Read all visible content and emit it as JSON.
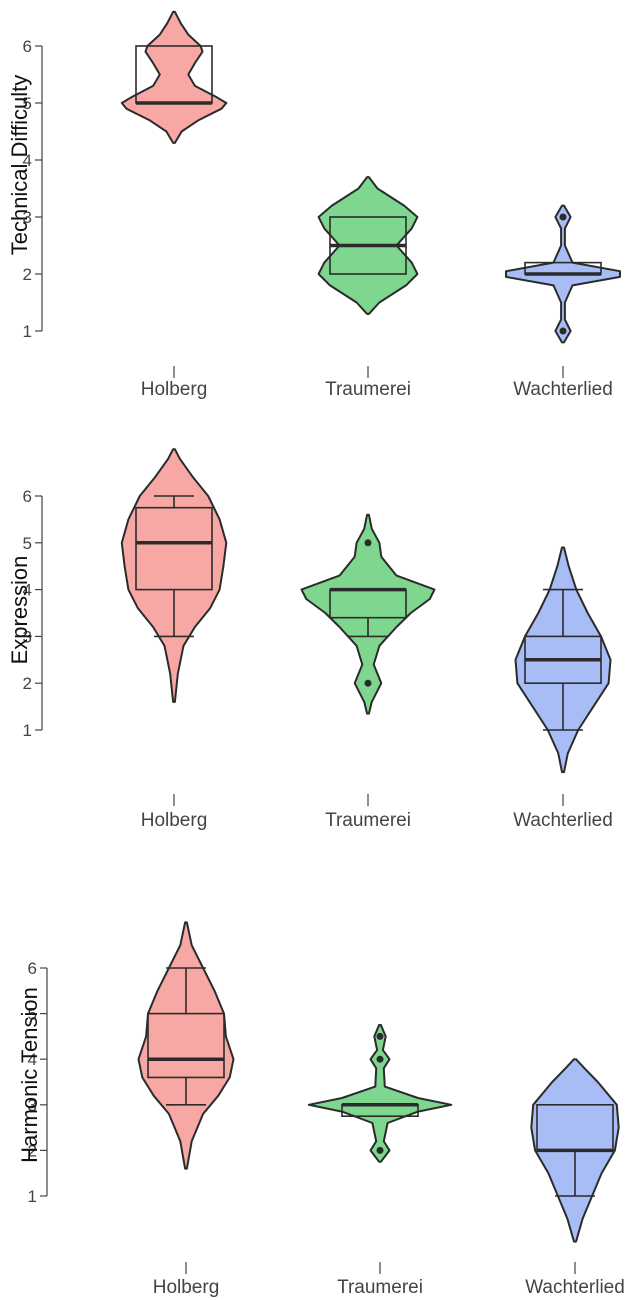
{
  "chart_data": [
    {
      "type": "violin",
      "ylabel": "Technical Difficulty",
      "ylim": [
        1,
        6
      ],
      "yticks": [
        "1",
        "2",
        "3",
        "4",
        "5",
        "6"
      ],
      "categories": [
        "Holberg",
        "Traumerei",
        "Wachterlied"
      ],
      "series": [
        {
          "category": "Holberg",
          "color": "#f8a8a4",
          "box": {
            "whisker_low": 5,
            "q1": 5,
            "median": 5,
            "q3": 6,
            "whisker_high": 6
          },
          "outliers": [],
          "density": [
            [
              4.3,
              0.01
            ],
            [
              4.5,
              0.08
            ],
            [
              4.7,
              0.26
            ],
            [
              4.9,
              0.5
            ],
            [
              5.0,
              0.55
            ],
            [
              5.1,
              0.45
            ],
            [
              5.3,
              0.22
            ],
            [
              5.5,
              0.15
            ],
            [
              5.7,
              0.22
            ],
            [
              5.9,
              0.3
            ],
            [
              6.0,
              0.28
            ],
            [
              6.2,
              0.15
            ],
            [
              6.4,
              0.07
            ],
            [
              6.6,
              0.01
            ]
          ]
        },
        {
          "category": "Traumerei",
          "color": "#7fd68f",
          "box": {
            "whisker_low": 2,
            "q1": 2,
            "median": 2.5,
            "q3": 3,
            "whisker_high": 3
          },
          "outliers": [],
          "density": [
            [
              1.3,
              0.01
            ],
            [
              1.5,
              0.12
            ],
            [
              1.8,
              0.4
            ],
            [
              2.0,
              0.52
            ],
            [
              2.2,
              0.46
            ],
            [
              2.5,
              0.3
            ],
            [
              2.8,
              0.46
            ],
            [
              3.0,
              0.52
            ],
            [
              3.2,
              0.38
            ],
            [
              3.5,
              0.1
            ],
            [
              3.7,
              0.01
            ]
          ]
        },
        {
          "category": "Wachterlied",
          "color": "#a8bdf5",
          "box": {
            "whisker_low": 2,
            "q1": 2,
            "median": 2,
            "q3": 2.2,
            "whisker_high": 2.2
          },
          "outliers": [
            1,
            3
          ],
          "density": [
            [
              0.8,
              0.01
            ],
            [
              1.0,
              0.08
            ],
            [
              1.2,
              0.02
            ],
            [
              1.5,
              0.02
            ],
            [
              1.8,
              0.1
            ],
            [
              1.95,
              0.6
            ],
            [
              2.05,
              0.6
            ],
            [
              2.2,
              0.1
            ],
            [
              2.5,
              0.02
            ],
            [
              2.8,
              0.02
            ],
            [
              3.0,
              0.08
            ],
            [
              3.2,
              0.01
            ]
          ]
        }
      ]
    },
    {
      "type": "violin",
      "ylabel": "Expression",
      "ylim": [
        1,
        6
      ],
      "yticks": [
        "1",
        "2",
        "3",
        "4",
        "5",
        "6"
      ],
      "categories": [
        "Holberg",
        "Traumerei",
        "Wachterlied"
      ],
      "series": [
        {
          "category": "Holberg",
          "color": "#f8a8a4",
          "box": {
            "whisker_low": 3,
            "q1": 4,
            "median": 5,
            "q3": 5.75,
            "whisker_high": 6
          },
          "outliers": [],
          "density": [
            [
              1.6,
              0.01
            ],
            [
              2.2,
              0.04
            ],
            [
              2.8,
              0.1
            ],
            [
              3.2,
              0.22
            ],
            [
              3.6,
              0.38
            ],
            [
              4.0,
              0.48
            ],
            [
              4.5,
              0.52
            ],
            [
              5.0,
              0.55
            ],
            [
              5.5,
              0.48
            ],
            [
              6.0,
              0.36
            ],
            [
              6.4,
              0.2
            ],
            [
              6.8,
              0.06
            ],
            [
              7.0,
              0.01
            ]
          ]
        },
        {
          "category": "Traumerei",
          "color": "#7fd68f",
          "box": {
            "whisker_low": 3,
            "q1": 3.4,
            "median": 4,
            "q3": 4,
            "whisker_high": 4
          },
          "outliers": [
            2,
            5
          ],
          "density": [
            [
              1.35,
              0.01
            ],
            [
              1.6,
              0.04
            ],
            [
              2.0,
              0.14
            ],
            [
              2.4,
              0.06
            ],
            [
              2.8,
              0.12
            ],
            [
              3.2,
              0.3
            ],
            [
              3.5,
              0.45
            ],
            [
              3.8,
              0.65
            ],
            [
              4.0,
              0.7
            ],
            [
              4.3,
              0.3
            ],
            [
              4.7,
              0.14
            ],
            [
              5.0,
              0.12
            ],
            [
              5.3,
              0.04
            ],
            [
              5.6,
              0.01
            ]
          ]
        },
        {
          "category": "Wachterlied",
          "color": "#a8bdf5",
          "box": {
            "whisker_low": 1,
            "q1": 2,
            "median": 2.5,
            "q3": 3,
            "whisker_high": 4
          },
          "outliers": [],
          "density": [
            [
              0.1,
              0.01
            ],
            [
              0.5,
              0.05
            ],
            [
              1.0,
              0.16
            ],
            [
              1.5,
              0.32
            ],
            [
              2.0,
              0.48
            ],
            [
              2.5,
              0.5
            ],
            [
              3.0,
              0.4
            ],
            [
              3.5,
              0.26
            ],
            [
              4.0,
              0.14
            ],
            [
              4.5,
              0.06
            ],
            [
              4.9,
              0.01
            ]
          ]
        }
      ]
    },
    {
      "type": "violin",
      "ylabel": "Harmonic Tension",
      "ylim": [
        1,
        6
      ],
      "yticks": [
        "1",
        "2",
        "3",
        "4",
        "5",
        "6"
      ],
      "categories": [
        "Holberg",
        "Traumerei",
        "Wachterlied"
      ],
      "series": [
        {
          "category": "Holberg",
          "color": "#f8a8a4",
          "box": {
            "whisker_low": 3,
            "q1": 3.6,
            "median": 4,
            "q3": 5,
            "whisker_high": 6
          },
          "outliers": [],
          "density": [
            [
              1.6,
              0.01
            ],
            [
              2.2,
              0.06
            ],
            [
              2.8,
              0.18
            ],
            [
              3.2,
              0.34
            ],
            [
              3.6,
              0.46
            ],
            [
              4.0,
              0.5
            ],
            [
              4.5,
              0.42
            ],
            [
              5.0,
              0.4
            ],
            [
              5.5,
              0.3
            ],
            [
              6.0,
              0.18
            ],
            [
              6.5,
              0.06
            ],
            [
              7.0,
              0.01
            ]
          ]
        },
        {
          "category": "Traumerei",
          "color": "#7fd68f",
          "box": {
            "whisker_low": 2.75,
            "q1": 2.75,
            "median": 3,
            "q3": 3,
            "whisker_high": 3
          },
          "outliers": [
            2,
            4,
            4.5
          ],
          "density": [
            [
              1.75,
              0.01
            ],
            [
              2.0,
              0.1
            ],
            [
              2.2,
              0.04
            ],
            [
              2.6,
              0.08
            ],
            [
              2.85,
              0.4
            ],
            [
              3.0,
              0.75
            ],
            [
              3.15,
              0.4
            ],
            [
              3.4,
              0.05
            ],
            [
              3.8,
              0.04
            ],
            [
              4.0,
              0.1
            ],
            [
              4.2,
              0.03
            ],
            [
              4.5,
              0.06
            ],
            [
              4.75,
              0.01
            ]
          ]
        },
        {
          "category": "Wachterlied",
          "color": "#a8bdf5",
          "box": {
            "whisker_low": 1,
            "q1": 2,
            "median": 2,
            "q3": 3,
            "whisker_high": 3
          },
          "outliers": [],
          "density": [
            [
              0.0,
              0.01
            ],
            [
              0.5,
              0.08
            ],
            [
              1.0,
              0.18
            ],
            [
              1.5,
              0.28
            ],
            [
              2.0,
              0.42
            ],
            [
              2.5,
              0.46
            ],
            [
              3.0,
              0.44
            ],
            [
              3.5,
              0.24
            ],
            [
              3.8,
              0.1
            ],
            [
              4.0,
              0.01
            ]
          ]
        }
      ]
    }
  ]
}
